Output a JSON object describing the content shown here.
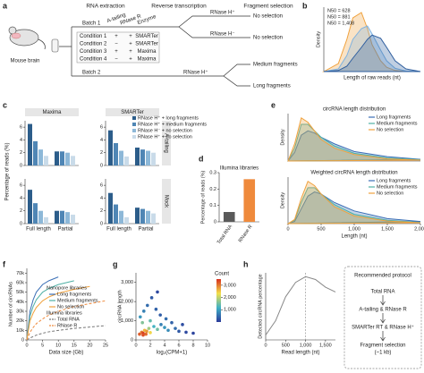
{
  "diagram": {
    "label": "a",
    "headers": [
      "RNA extraction",
      "Reverse transcription",
      "Fragment selection"
    ],
    "source": "Mouse brain",
    "batches": [
      "Batch 1",
      "Batch 2"
    ],
    "table": {
      "columns": [
        "A-tailing",
        "RNase R",
        "Enzyme"
      ],
      "rows": [
        [
          "Condition 1",
          "+",
          "+",
          "SMARTer"
        ],
        [
          "Condition 2",
          "−",
          "+",
          "SMARTer"
        ],
        [
          "Condition 3",
          "+",
          "+",
          "Maxima"
        ],
        [
          "Condition 4",
          "−",
          "+",
          "Maxima"
        ]
      ]
    },
    "branches": [
      {
        "enzyme": "RNase H⁺",
        "outcomes": [
          "No selection"
        ],
        "colors": [
          "#f0a23e"
        ]
      },
      {
        "enzyme": "RNase H⁻",
        "outcomes": [
          "No selection"
        ],
        "colors": [
          "#444444"
        ]
      },
      {
        "enzyme": "RNase H⁺",
        "outcomes": [
          "Medium fragments",
          "Long fragments"
        ],
        "colors": [
          "#4fb0a5",
          "#3b6fb6"
        ]
      }
    ]
  },
  "chart_data": [
    {
      "type": "line",
      "label": "b",
      "xlabel": "Length of raw reads (nt)",
      "ylabel": "Density",
      "log_x": true,
      "fill": true,
      "legend": "top-left",
      "legend_style": "colored-text",
      "xlim": [
        100,
        10000
      ],
      "ylim": [
        0,
        1.2
      ],
      "x": [
        100,
        200,
        300,
        400,
        600,
        800,
        1000,
        1500,
        2000,
        3000,
        5000,
        10000
      ],
      "series": [
        {
          "name": "N50 = 628",
          "color": "#f0a23e",
          "values": [
            0,
            0.15,
            0.6,
            1.0,
            1.1,
            0.8,
            0.5,
            0.2,
            0.08,
            0.02,
            0,
            0
          ]
        },
        {
          "name": "N50 = 881",
          "color": "#7fb2e0",
          "values": [
            0,
            0.05,
            0.3,
            0.6,
            0.8,
            0.85,
            0.7,
            0.4,
            0.2,
            0.06,
            0.01,
            0
          ]
        },
        {
          "name": "N50 = 1,408",
          "color": "#2f5f9f",
          "values": [
            0,
            0.02,
            0.1,
            0.25,
            0.45,
            0.6,
            0.68,
            0.62,
            0.45,
            0.2,
            0.05,
            0
          ]
        }
      ]
    },
    {
      "type": "facet_bar",
      "label": "c",
      "ylabel": "Percentage of reads (%)",
      "columns": [
        "Maxima",
        "SMARTer"
      ],
      "rows": [
        "A-tailing",
        "Mock"
      ],
      "categories": [
        "Full length",
        "Partial"
      ],
      "ylim": [
        0,
        7
      ],
      "yticks": [
        0,
        2,
        4,
        6
      ],
      "series": [
        {
          "name": "RNase H⁺ + long fragments",
          "color": "#2c5d8a"
        },
        {
          "name": "RNase H⁺ + medium fragments",
          "color": "#4f86b5"
        },
        {
          "name": "RNase H⁻ + no selection",
          "color": "#8db8d8"
        },
        {
          "name": "RNase H⁺ + no selection",
          "color": "#c9dbe9"
        }
      ],
      "panels": [
        [
          [
            [
              6.5,
              2.2
            ],
            [
              3.8,
              2.2
            ],
            [
              2.5,
              2.0
            ],
            [
              1.5,
              1.5
            ]
          ],
          [
            [
              5.5,
              2.8
            ],
            [
              3.5,
              2.5
            ],
            [
              2.3,
              2.3
            ],
            [
              1.4,
              2.0
            ]
          ]
        ],
        [
          [
            [
              5.3,
              2.0
            ],
            [
              3.2,
              2.0
            ],
            [
              2.0,
              1.8
            ],
            [
              1.0,
              1.4
            ]
          ],
          [
            [
              4.8,
              2.5
            ],
            [
              3.0,
              2.3
            ],
            [
              2.0,
              2.0
            ],
            [
              1.0,
              1.6
            ]
          ]
        ]
      ]
    },
    {
      "type": "bar",
      "label": "d",
      "title": "Illumina libraries",
      "ylabel": "Percentage of reads (%)",
      "categories": [
        "Total RNA",
        "RNase R"
      ],
      "values": [
        0.06,
        0.26
      ],
      "colors": [
        "#5a5a5a",
        "#ef8a3c"
      ],
      "ylim": [
        0,
        0.3
      ],
      "yticks": [
        0,
        0.1,
        0.2,
        0.3
      ]
    },
    {
      "type": "line",
      "label": "e",
      "title": "circRNA length distribution",
      "ylabel": "Density",
      "fill": true,
      "legend": "top-right",
      "xlim": [
        0,
        2000
      ],
      "ylim": [
        0,
        1.1
      ],
      "x": [
        0,
        100,
        200,
        300,
        400,
        500,
        700,
        1000,
        1500,
        2000
      ],
      "series": [
        {
          "name": "Long fragments",
          "color": "#3b6fb6",
          "values": [
            0,
            0.2,
            0.6,
            0.7,
            0.65,
            0.55,
            0.4,
            0.22,
            0.1,
            0.04
          ]
        },
        {
          "name": "Medium fragments",
          "color": "#4fb0a5",
          "values": [
            0,
            0.3,
            0.85,
            0.85,
            0.7,
            0.55,
            0.35,
            0.18,
            0.07,
            0.03
          ]
        },
        {
          "name": "No selection",
          "color": "#f0a23e",
          "values": [
            0,
            0.4,
            1.0,
            0.9,
            0.7,
            0.5,
            0.3,
            0.15,
            0.05,
            0.02
          ]
        }
      ]
    },
    {
      "type": "line",
      "title": "Weighted circRNA length distribution",
      "ylabel": "Density",
      "xlabel": "Length (nt)",
      "fill": true,
      "legend": "top-right",
      "xlim": [
        0,
        2000
      ],
      "ylim": [
        0,
        1.1
      ],
      "xticks": [
        0,
        500,
        {
          "value": 1000,
          "label": "1,000"
        },
        {
          "value": 1500,
          "label": "1,500"
        },
        {
          "value": 2000,
          "label": "2,000"
        }
      ],
      "x": [
        0,
        100,
        200,
        300,
        400,
        500,
        700,
        1000,
        1500,
        2000
      ],
      "series": [
        {
          "name": "Long fragments",
          "color": "#3b6fb6",
          "values": [
            0,
            0.05,
            0.35,
            0.65,
            0.75,
            0.7,
            0.5,
            0.3,
            0.12,
            0.05
          ]
        },
        {
          "name": "Medium fragments",
          "color": "#4fb0a5",
          "values": [
            0,
            0.08,
            0.5,
            0.85,
            0.85,
            0.7,
            0.45,
            0.22,
            0.08,
            0.03
          ]
        },
        {
          "name": "No selection",
          "color": "#f0a23e",
          "values": [
            0,
            0.1,
            0.6,
            1.0,
            0.9,
            0.7,
            0.4,
            0.18,
            0.06,
            0.02
          ]
        }
      ]
    },
    {
      "type": "line",
      "label": "f",
      "xlabel": "Data size (Gb)",
      "ylabel": "Number of circRNAs",
      "legend": "center-right",
      "legend_titles": [
        "Nanopore libraries",
        "Illumina libraries"
      ],
      "xlim": [
        0,
        25
      ],
      "ylim": [
        0,
        75000
      ],
      "xticks": [
        0,
        5,
        10,
        15,
        20,
        25
      ],
      "yticks": [
        0,
        {
          "value": 10000,
          "label": "10k"
        },
        {
          "value": 20000,
          "label": "20k"
        },
        {
          "value": 30000,
          "label": "30k"
        },
        {
          "value": 40000,
          "label": "40k"
        },
        {
          "value": 50000,
          "label": "50k"
        },
        {
          "value": 60000,
          "label": "60k"
        },
        {
          "value": 70000,
          "label": "70k"
        }
      ],
      "x": [
        0,
        1,
        2,
        3,
        5,
        7,
        10,
        15,
        20,
        25
      ],
      "series": [
        {
          "name": "Long fragments",
          "color": "#3b6fb6",
          "values": [
            0,
            30000,
            42000,
            50000,
            58000,
            62000,
            66000,
            null,
            null,
            null
          ]
        },
        {
          "name": "Medium fragments",
          "color": "#4fb0a5",
          "values": [
            0,
            25000,
            35000,
            42000,
            50000,
            54000,
            58000,
            62000,
            null,
            null
          ]
        },
        {
          "name": "No selection",
          "color": "#f0a23e",
          "values": [
            0,
            20000,
            28000,
            34000,
            41000,
            45000,
            49000,
            53000,
            56000,
            null
          ]
        },
        {
          "name": "Total RNA",
          "color": "#777777",
          "dashed": true,
          "values": [
            0,
            2000,
            3500,
            5000,
            7000,
            8500,
            10000,
            12000,
            13500,
            15000
          ]
        },
        {
          "name": "RNase R",
          "color": "#ef8a3c",
          "dashed": true,
          "values": [
            0,
            8000,
            13000,
            17000,
            22000,
            26000,
            30000,
            35000,
            38000,
            41000
          ]
        }
      ]
    },
    {
      "type": "scatter",
      "label": "g",
      "xlabel": "log₂(CPM+1)",
      "ylabel": "circRNA length",
      "xlim": [
        0,
        10
      ],
      "ylim": [
        0,
        3500
      ],
      "xticks": [
        0,
        2,
        4,
        6,
        8,
        10
      ],
      "yticks": [
        0,
        {
          "value": 1000,
          "label": "1,000"
        },
        {
          "value": 2000,
          "label": "2,000"
        },
        {
          "value": 3000,
          "label": "3,000"
        }
      ],
      "x": [
        0.5,
        0.8,
        1.0,
        1.2,
        1.5,
        1.8,
        2.0,
        2.5,
        3.0,
        3.5,
        4.0,
        4.5,
        5.0,
        5.5,
        6.0,
        7.0,
        8.0,
        0.6,
        1.1,
        1.6,
        2.2,
        2.8,
        3.4,
        1.0,
        1.4,
        0.9,
        2.0,
        3.0,
        4.2,
        6.5
      ],
      "values": [
        300,
        400,
        350,
        500,
        450,
        600,
        380,
        700,
        550,
        800,
        650,
        500,
        900,
        600,
        450,
        400,
        350,
        1200,
        1500,
        1800,
        2200,
        1600,
        1300,
        250,
        300,
        900,
        1000,
        2500,
        1100,
        800
      ],
      "counts": [
        3200,
        3000,
        3400,
        2600,
        2800,
        1800,
        2400,
        1200,
        1500,
        700,
        900,
        800,
        400,
        500,
        300,
        150,
        100,
        900,
        700,
        500,
        300,
        400,
        350,
        3300,
        3100,
        1600,
        1400,
        150,
        500,
        200
      ],
      "colorbar_title": "Count",
      "clim": [
        0,
        3500
      ],
      "colormap": [
        "#2b3a9a",
        "#3fb1c6",
        "#f3e04b",
        "#d7301f"
      ],
      "colorbar_ticks": [
        {
          "value": 1000,
          "label": "1,000"
        },
        {
          "value": 2000,
          "label": "2,000"
        },
        {
          "value": 3000,
          "label": "3,000"
        }
      ]
    },
    {
      "type": "line",
      "label": "h",
      "xlabel": "Read length (nt)",
      "ylabel": "Detected circRNA percentage",
      "xlim": [
        0,
        1750
      ],
      "ylim": [
        0,
        0.7
      ],
      "xticks": [
        0,
        500,
        {
          "value": 1000,
          "label": "1,000"
        },
        {
          "value": 1500,
          "label": "1,500"
        }
      ],
      "vline": 1000,
      "x": [
        0,
        250,
        500,
        750,
        1000,
        1250,
        1500,
        1750
      ],
      "series": [
        {
          "color": "#888888",
          "values": [
            0.05,
            0.2,
            0.45,
            0.6,
            0.66,
            0.63,
            0.55,
            0.5
          ]
        }
      ]
    }
  ],
  "protocol": {
    "title": "Recommended protocol",
    "steps": [
      "Total RNA",
      "A-tailing & RNase R",
      "SMARTer RT & RNase H⁺",
      "Fragment selection"
    ],
    "note": "(~1 kb)"
  }
}
